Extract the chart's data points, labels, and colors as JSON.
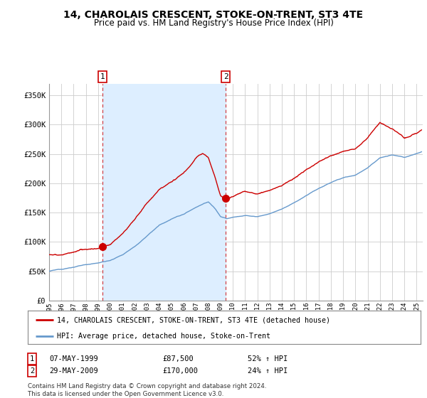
{
  "title": "14, CHAROLAIS CRESCENT, STOKE-ON-TRENT, ST3 4TE",
  "subtitle": "Price paid vs. HM Land Registry's House Price Index (HPI)",
  "ylabel_ticks": [
    "£0",
    "£50K",
    "£100K",
    "£150K",
    "£200K",
    "£250K",
    "£300K",
    "£350K"
  ],
  "ytick_values": [
    0,
    50000,
    100000,
    150000,
    200000,
    250000,
    300000,
    350000
  ],
  "ylim": [
    0,
    370000
  ],
  "xlim_start": 1995.0,
  "xlim_end": 2025.5,
  "sale1_date": 1999.36,
  "sale1_price": 87500,
  "sale2_date": 2009.41,
  "sale2_price": 170000,
  "legend_label_red": "14, CHAROLAIS CRESCENT, STOKE-ON-TRENT, ST3 4TE (detached house)",
  "legend_label_blue": "HPI: Average price, detached house, Stoke-on-Trent",
  "annotation1_label": "1",
  "annotation1_date": "07-MAY-1999",
  "annotation1_price": "£87,500",
  "annotation1_hpi": "52% ↑ HPI",
  "annotation2_label": "2",
  "annotation2_date": "29-MAY-2009",
  "annotation2_price": "£170,000",
  "annotation2_hpi": "24% ↑ HPI",
  "footer": "Contains HM Land Registry data © Crown copyright and database right 2024.\nThis data is licensed under the Open Government Licence v3.0.",
  "red_color": "#cc0000",
  "blue_color": "#6699cc",
  "shade_color": "#ddeeff",
  "vline_color": "#cc0000",
  "background_color": "#ffffff",
  "grid_color": "#cccccc"
}
